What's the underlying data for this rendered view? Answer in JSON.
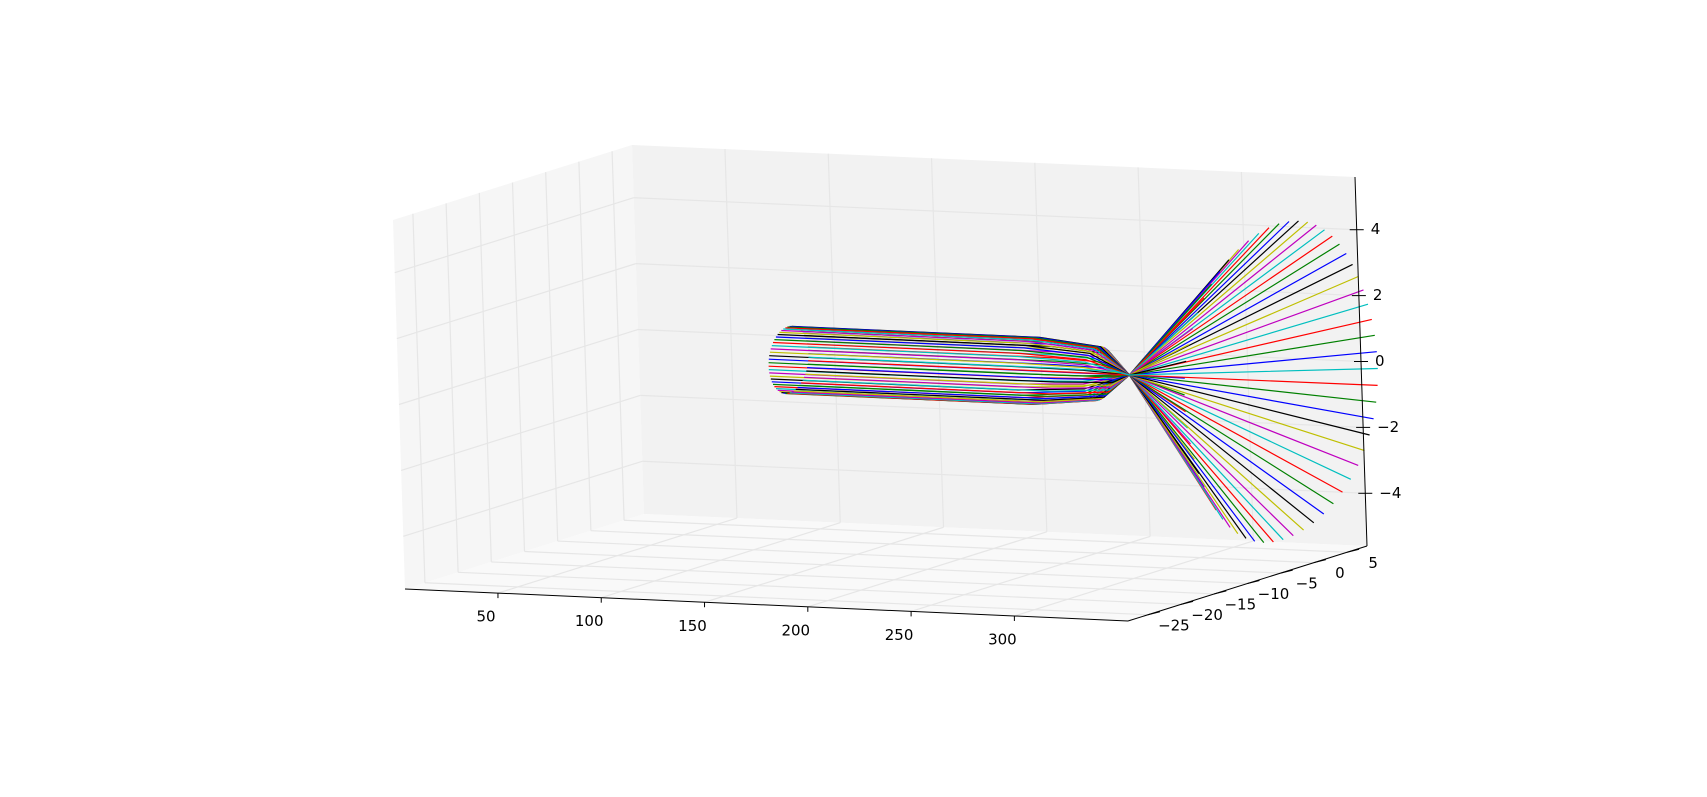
{
  "chart_data": {
    "type": "line",
    "projection": "3d",
    "title": "",
    "xlabel": "",
    "ylabel": "",
    "zlabel": "",
    "grid": true,
    "legend": "none",
    "xlim": [
      5,
      355
    ],
    "ylim": [
      -28,
      8
    ],
    "zlim": [
      -5.6,
      5.6
    ],
    "x_ticks": [
      50,
      100,
      150,
      200,
      250,
      300
    ],
    "y_ticks": [
      -25,
      -20,
      -15,
      -10,
      -5,
      0,
      5
    ],
    "z_ticks": [
      -4,
      -2,
      0,
      2,
      4
    ],
    "x_tick_labels": [
      "50",
      "100",
      "150",
      "200",
      "250",
      "300"
    ],
    "y_tick_labels": [
      "−25",
      "−20",
      "−15",
      "−10",
      "−5",
      "0",
      "5"
    ],
    "z_tick_labels": [
      "−4",
      "−2",
      "0",
      "2",
      "4"
    ],
    "ray_count": 60,
    "ray_colors": [
      "#0000ff",
      "#008000",
      "#ff0000",
      "#00bfbf",
      "#bf00bf",
      "#bfbf00",
      "#000000"
    ],
    "ray_path": {
      "x": [
        110,
        230,
        260,
        275,
        350
      ],
      "radius_start": 1.0,
      "radius_mid": 0.8,
      "radius_focus": 0.0,
      "radius_end": 4.8,
      "ray_length_variation": 0.04
    },
    "pane_colors": {
      "back": "#f2f2f2",
      "side": "#f6f6f6",
      "floor": "#f9f9f9",
      "grid": "#e6e6e6"
    }
  }
}
